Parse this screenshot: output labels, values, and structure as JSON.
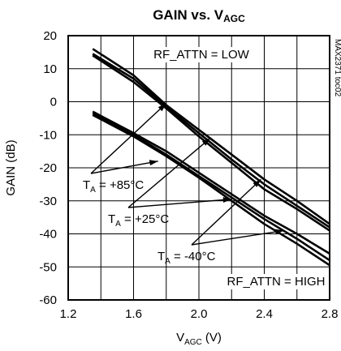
{
  "chart_data": {
    "type": "line",
    "title_main": "GAIN vs. V",
    "title_sub": "AGC",
    "xlabel_main": "V",
    "xlabel_sub": "AGC",
    "xlabel_unit": " (V)",
    "ylabel": "GAIN (dB)",
    "xlim": [
      1.2,
      2.8
    ],
    "ylim": [
      -60,
      20
    ],
    "xticks": [
      1.2,
      1.6,
      2.0,
      2.4,
      2.8
    ],
    "xtick_labels": [
      "1.2",
      "1.6",
      "2.0",
      "2.4",
      "2.8"
    ],
    "yticks": [
      -60,
      -50,
      -40,
      -30,
      -20,
      -10,
      0,
      10,
      20
    ],
    "ytick_labels": [
      "-60",
      "-50",
      "-40",
      "-30",
      "-20",
      "-10",
      "0",
      "10",
      "20"
    ],
    "grid": true,
    "side_code": "MAX2371 toc02",
    "groups": [
      {
        "label": "RF_ATTN = LOW",
        "series": [
          {
            "x": [
              1.35,
              1.6,
              1.8,
              2.0,
              2.2,
              2.4,
              2.6,
              2.8
            ],
            "y": [
              16,
              8,
              -1,
              -8.5,
              -16,
              -23.5,
              -30,
              -37
            ]
          },
          {
            "x": [
              1.35,
              1.6,
              1.8,
              2.0,
              2.2,
              2.4,
              2.6,
              2.8
            ],
            "y": [
              14.5,
              7,
              -1.5,
              -9.5,
              -17.5,
              -25,
              -31.5,
              -38
            ]
          },
          {
            "x": [
              1.35,
              1.6,
              1.8,
              2.0,
              2.2,
              2.4,
              2.6,
              2.8
            ],
            "y": [
              14,
              6,
              -2,
              -10.5,
              -18.5,
              -26.5,
              -32.5,
              -39
            ]
          }
        ]
      },
      {
        "label": "RF_ATTN = HIGH",
        "series": [
          {
            "x": [
              1.35,
              1.6,
              1.8,
              2.0,
              2.2,
              2.4,
              2.6,
              2.8
            ],
            "y": [
              -3,
              -9.5,
              -15,
              -21.5,
              -28,
              -34.5,
              -40,
              -46
            ]
          },
          {
            "x": [
              1.35,
              1.6,
              1.8,
              2.0,
              2.2,
              2.4,
              2.6,
              2.8
            ],
            "y": [
              -3.5,
              -10,
              -16,
              -22.5,
              -29,
              -35.5,
              -41.5,
              -48
            ]
          },
          {
            "x": [
              1.35,
              1.6,
              1.8,
              2.0,
              2.2,
              2.4,
              2.6,
              2.8
            ],
            "y": [
              -4,
              -10.5,
              -16.5,
              -23,
              -30,
              -37,
              -43,
              -49.5
            ]
          }
        ]
      }
    ],
    "annotations": [
      {
        "text_main": "T",
        "text_sub": "A",
        "text_rest": " = +85°C",
        "pointer_targets": [
          [
            1.8,
            -0.5
          ],
          [
            1.75,
            -18
          ]
        ]
      },
      {
        "text_main": "T",
        "text_sub": "A",
        "text_rest": " = +25°C",
        "pointer_targets": [
          [
            2.07,
            -11
          ],
          [
            2.2,
            -29.5
          ]
        ]
      },
      {
        "text_main": "T",
        "text_sub": "A",
        "text_rest": " = -40°C",
        "pointer_targets": [
          [
            2.38,
            -23.5
          ],
          [
            2.52,
            -39
          ]
        ]
      }
    ]
  }
}
